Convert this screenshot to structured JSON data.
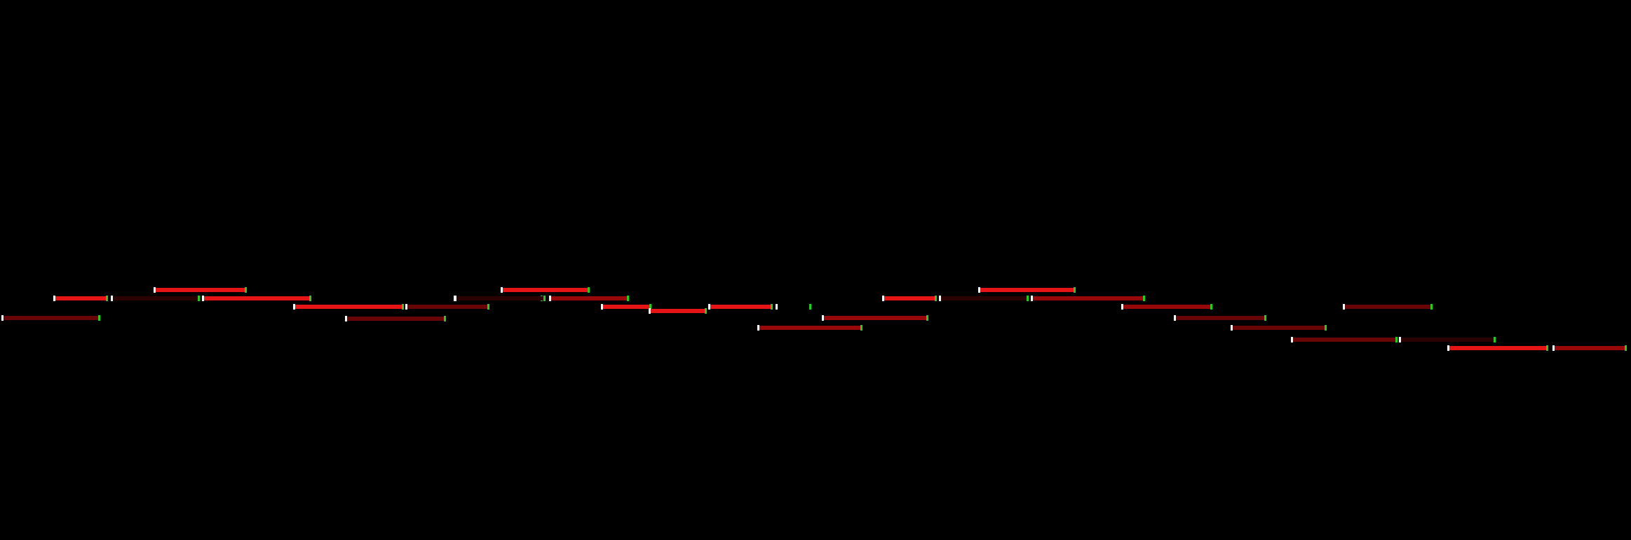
{
  "colors": {
    "background": "#000000",
    "active": "#e61414",
    "medium": "#990808",
    "dim": "#6a0505",
    "faint": "#2a0202",
    "start_marker": "#ffffff",
    "end_marker": "#22cc22"
  },
  "notes": [
    {
      "intensity": "dim"
    },
    {
      "intensity": "active"
    },
    {
      "intensity": "active"
    },
    {
      "intensity": "faint"
    },
    {
      "intensity": "active"
    },
    {
      "intensity": "active"
    },
    {
      "intensity": "dim"
    },
    {
      "intensity": "dim"
    },
    {
      "intensity": "medium"
    },
    {
      "intensity": "faint"
    },
    {
      "intensity": "active"
    },
    {
      "intensity": "medium"
    },
    {
      "intensity": "active"
    },
    {
      "intensity": "active"
    },
    {
      "intensity": "active"
    },
    {
      "intensity": "medium"
    },
    {
      "intensity": "medium"
    },
    {
      "intensity": "active"
    },
    {
      "intensity": "faint"
    },
    {
      "intensity": "active"
    },
    {
      "intensity": "medium"
    },
    {
      "intensity": "medium"
    },
    {
      "intensity": "dim"
    },
    {
      "intensity": "dim"
    },
    {
      "intensity": "dim"
    },
    {
      "intensity": "dim"
    },
    {
      "intensity": "faint"
    },
    {
      "intensity": "active"
    },
    {
      "intensity": "medium"
    }
  ]
}
